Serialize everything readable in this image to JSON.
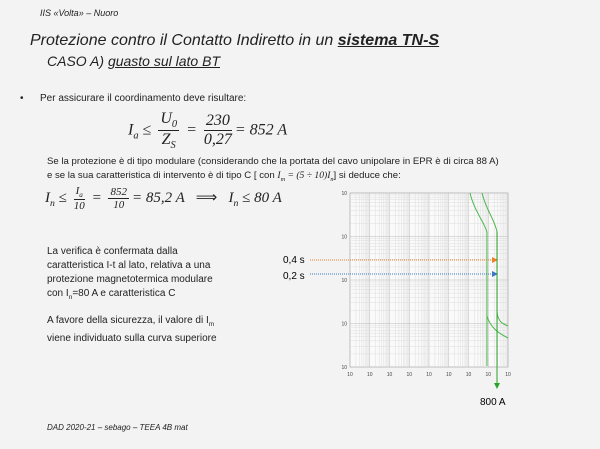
{
  "header": "IIS «Volta» – Nuoro",
  "title": {
    "line1": "Protezione contro il Contatto Indiretto in un ",
    "line1_bold": "sistema TN-S",
    "line2": "CASO A) ",
    "line2_underlined": "guasto sul lato BT"
  },
  "bullet": "Per assicurare il coordinamento deve risultare:",
  "formula1": {
    "lhs": "I",
    "lhs_sub": "a",
    "rel": "≤",
    "num": "U",
    "num_sub": "0",
    "den": "Z",
    "den_sub": "S",
    "eq": "=",
    "num2": "230",
    "den2": "0,27",
    "result": "= 852 A"
  },
  "paragraph": {
    "line1": "Se la protezione è di tipo modulare (considerando che la portata del cavo unipolare in EPR è di circa 88 A)",
    "line2_start": "e se la sua caratteristica di intervento è di tipo C [ con ",
    "im": "I",
    "im_sub": "m",
    "range": " = (5 ÷ 10)",
    "in": "I",
    "in_sub": "n",
    "line2_end": "] si deduce che:"
  },
  "formula2": {
    "lhs": "I",
    "lhs_sub": "n",
    "rel": "≤",
    "num": "I",
    "num_sub": "a",
    "den": "10",
    "eq": "=",
    "num2": "852",
    "den2": "10",
    "result": "= 85,2 A",
    "implies": "⟹",
    "rhs": "I",
    "rhs_sub": "n",
    "rhs_rest": " ≤ 80 A"
  },
  "note": {
    "lines": [
      "La verifica è confermata dalla",
      "caratteristica I-t al lato, relativa a una",
      "protezione magnetotermica modulare"
    ],
    "line4_start": "con I",
    "line4_sub": "n",
    "line4_end": "=80 A e caratteristica C"
  },
  "note2": {
    "line1_start": "A favore della sicurezza, il valore di I",
    "line1_sub": "m",
    "line2": "viene individuato sulla curva superiore"
  },
  "chart": {
    "label_04": "0,4 s",
    "label_02": "0,2 s",
    "current": "800 A",
    "x_tick_labels": [
      "10",
      "10",
      "10",
      "10",
      "10",
      "10",
      "10",
      "10",
      "10"
    ],
    "y_tick_labels": [
      "10",
      "10",
      "10",
      "10",
      "10"
    ]
  },
  "footer": "DAD 2020-21 – sebago – TEEA 4B mat"
}
